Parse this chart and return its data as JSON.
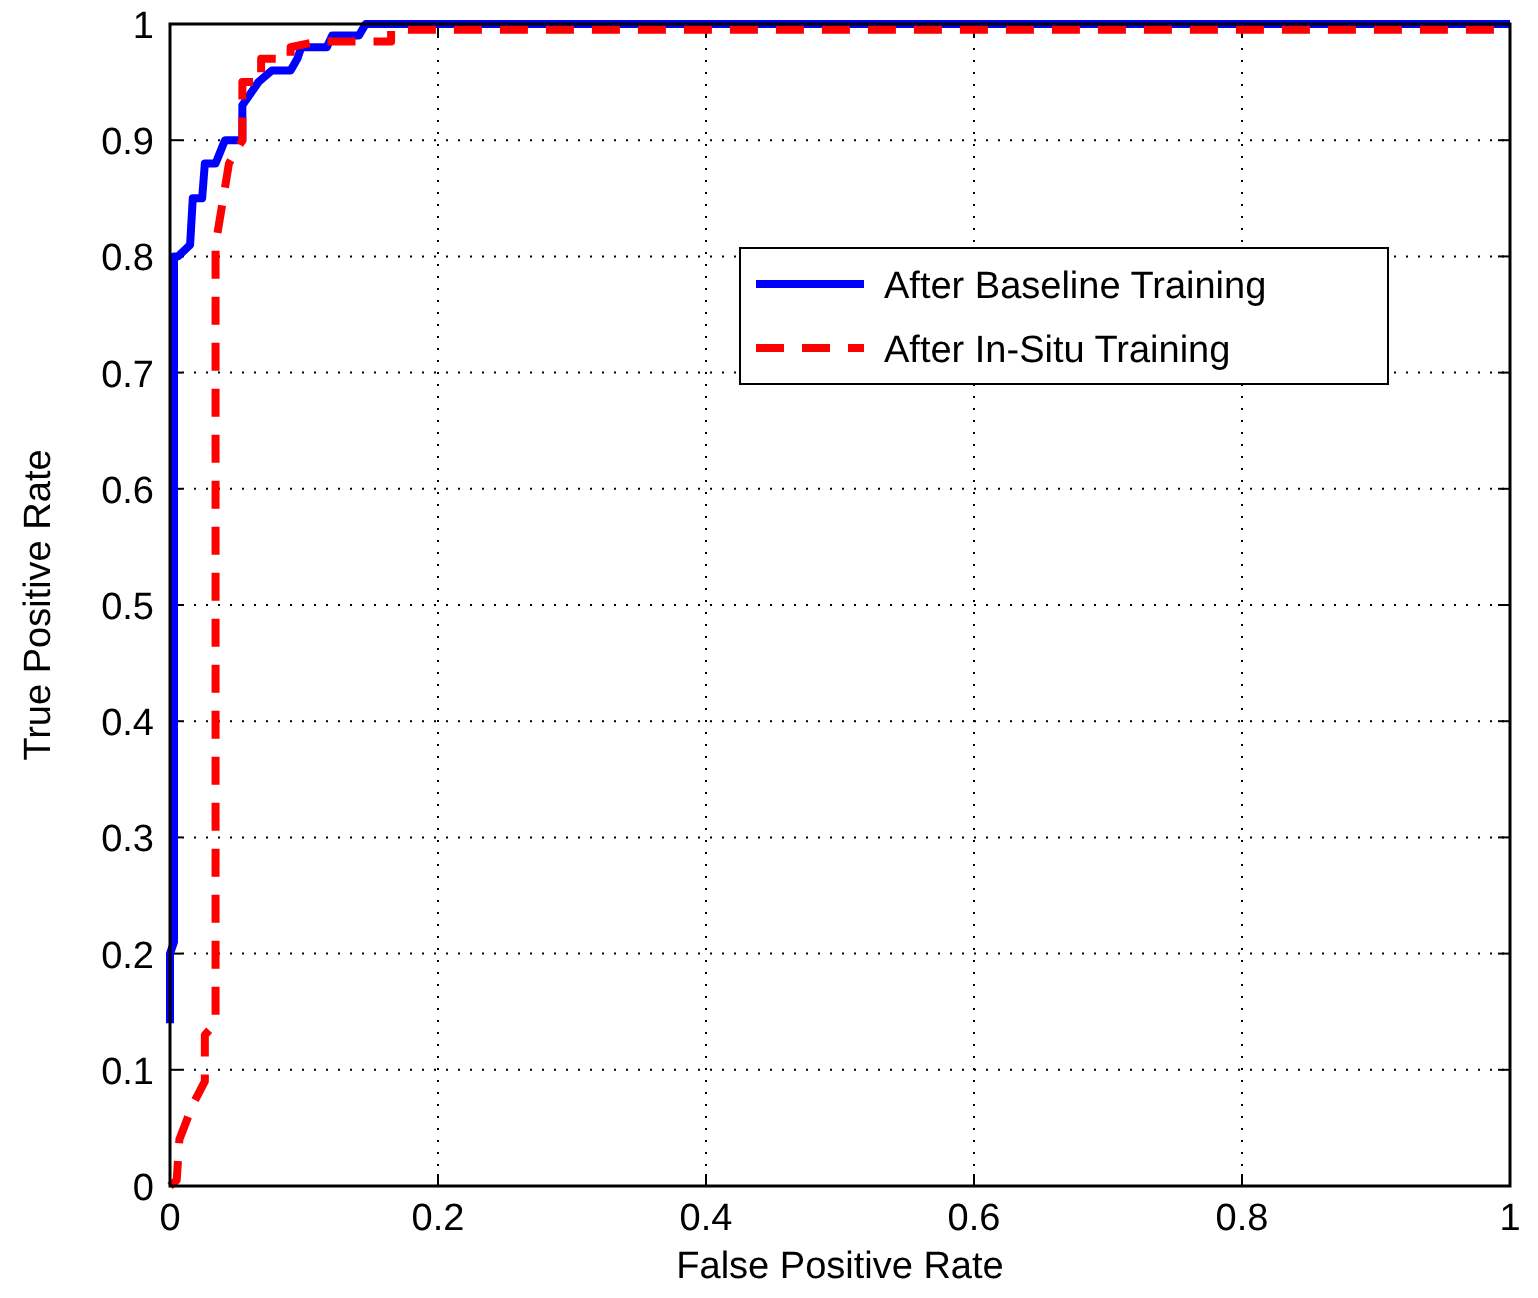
{
  "chart_data": {
    "type": "line",
    "xlabel": "False Positive Rate",
    "ylabel": "True Positive Rate",
    "xlim": [
      0,
      1
    ],
    "ylim": [
      0,
      1
    ],
    "xticks": [
      0,
      0.2,
      0.4,
      0.6,
      0.8,
      1
    ],
    "yticks": [
      0,
      0.1,
      0.2,
      0.3,
      0.4,
      0.5,
      0.6,
      0.7,
      0.8,
      0.9,
      1
    ],
    "grid": true,
    "legend": "top right",
    "series": [
      {
        "name": "After Baseline Training",
        "color": "#0000ff",
        "line_style": "solid",
        "x": [
          0,
          0,
          0.003,
          0.003,
          0.006,
          0.015,
          0.017,
          0.024,
          0.026,
          0.034,
          0.041,
          0.054,
          0.054,
          0.066,
          0.076,
          0.09,
          0.095,
          0.098,
          0.117,
          0.121,
          0.141,
          0.146,
          1
        ],
        "values": [
          0.14,
          0.2,
          0.21,
          0.8,
          0.8,
          0.81,
          0.85,
          0.85,
          0.88,
          0.88,
          0.9,
          0.9,
          0.93,
          0.95,
          0.96,
          0.96,
          0.97,
          0.98,
          0.98,
          0.99,
          0.99,
          1,
          1
        ]
      },
      {
        "name": "After In-Situ Training",
        "color": "#ff0000",
        "line_style": "dashed",
        "x": [
          0,
          0.005,
          0.007,
          0.017,
          0.026,
          0.026,
          0.034,
          0.034,
          0.044,
          0.054,
          0.054,
          0.068,
          0.068,
          0.09,
          0.09,
          0.11,
          0.165,
          0.165,
          1
        ],
        "values": [
          0,
          0.005,
          0.04,
          0.07,
          0.09,
          0.13,
          0.14,
          0.81,
          0.88,
          0.9,
          0.95,
          0.95,
          0.97,
          0.97,
          0.98,
          0.985,
          0.985,
          0.995,
          0.995
        ]
      }
    ]
  }
}
